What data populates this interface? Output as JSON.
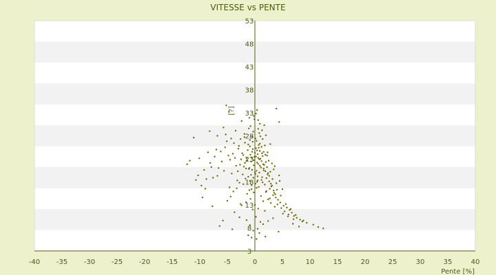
{
  "chart_data": {
    "type": "scatter",
    "title": "VITESSE vs PENTE",
    "xlabel": "Pente [%]",
    "ylabel": "[?]",
    "xlim": [
      -40,
      40
    ],
    "ylim": [
      3,
      53
    ],
    "x_ticks": [
      "-40",
      "-35",
      "-30",
      "-25",
      "-20",
      "-15",
      "-10",
      "-5",
      "0",
      "5",
      "10",
      "15",
      "20",
      "25",
      "30",
      "35",
      "40"
    ],
    "y_ticks": [
      "53",
      "48",
      "43",
      "38",
      "33",
      "28",
      "23",
      "18",
      "13",
      "8",
      "3"
    ],
    "grid": true,
    "legend": "none",
    "colors": {
      "background": "#eef2cc",
      "plot_band_white": "#ffffff",
      "plot_band_gray": "#f2f2f2",
      "axis": "#5a5a10",
      "marker": "#6b6b00",
      "text": "#4a5a10"
    },
    "series": [
      {
        "points": [
          [
            -0.5,
            24.5
          ],
          [
            0.6,
            23.2
          ],
          [
            1.5,
            21.8
          ],
          [
            -1.2,
            26.1
          ],
          [
            0.1,
            27.4
          ],
          [
            2.3,
            19.6
          ],
          [
            -2.1,
            23.8
          ],
          [
            0.8,
            22.9
          ],
          [
            1.2,
            18.4
          ],
          [
            -0.9,
            25.7
          ],
          [
            3.1,
            17.2
          ],
          [
            -1.8,
            22.1
          ],
          [
            0.4,
            24.8
          ],
          [
            1.9,
            20.3
          ],
          [
            -0.2,
            21.6
          ],
          [
            2.7,
            16.5
          ],
          [
            -3.0,
            25.2
          ],
          [
            0.9,
            26.3
          ],
          [
            1.4,
            17.9
          ],
          [
            -1.1,
            20.8
          ],
          [
            4.2,
            14.1
          ],
          [
            -2.6,
            27.3
          ],
          [
            0.2,
            23.5
          ],
          [
            2.1,
            18.8
          ],
          [
            -0.7,
            22.4
          ],
          [
            3.5,
            15.6
          ],
          [
            -4.0,
            24.1
          ],
          [
            1.1,
            21.1
          ],
          [
            0.5,
            19.2
          ],
          [
            -1.5,
            23.1
          ],
          [
            5.2,
            12.8
          ],
          [
            -3.4,
            21.5
          ],
          [
            0.7,
            25.4
          ],
          [
            2.9,
            17.6
          ],
          [
            -0.3,
            18.9
          ],
          [
            4.6,
            13.5
          ],
          [
            -5.1,
            26.8
          ],
          [
            1.6,
            20.9
          ],
          [
            0.3,
            16.7
          ],
          [
            -2.2,
            19.6
          ],
          [
            6.3,
            11.9
          ],
          [
            -4.5,
            22.8
          ],
          [
            1.0,
            27.9
          ],
          [
            3.3,
            15.1
          ],
          [
            -0.6,
            17.3
          ],
          [
            5.8,
            12.4
          ],
          [
            -6.2,
            24.6
          ],
          [
            2.0,
            22.3
          ],
          [
            0.0,
            20.1
          ],
          [
            -1.9,
            28.4
          ],
          [
            7.1,
            10.6
          ],
          [
            -5.6,
            20.4
          ],
          [
            1.3,
            24.2
          ],
          [
            3.8,
            14.6
          ],
          [
            -1.0,
            16.2
          ],
          [
            6.7,
            11.3
          ],
          [
            -7.3,
            23.5
          ],
          [
            2.4,
            19.9
          ],
          [
            -0.4,
            26.7
          ],
          [
            -2.8,
            17.8
          ],
          [
            8.2,
            9.8
          ],
          [
            -6.8,
            19.3
          ],
          [
            0.6,
            29.5
          ],
          [
            4.1,
            13.1
          ],
          [
            -1.4,
            15.4
          ],
          [
            7.6,
            10.2
          ],
          [
            -8.1,
            22.1
          ],
          [
            2.6,
            18.1
          ],
          [
            0.8,
            28.6
          ],
          [
            -3.3,
            16.6
          ],
          [
            9.4,
            9.1
          ],
          [
            -7.9,
            21.2
          ],
          [
            1.7,
            30.3
          ],
          [
            4.8,
            12.3
          ],
          [
            -0.8,
            14.3
          ],
          [
            8.8,
            9.6
          ],
          [
            -9.2,
            20.6
          ],
          [
            3.0,
            17.0
          ],
          [
            -0.1,
            31.6
          ],
          [
            -3.9,
            15.9
          ],
          [
            10.6,
            8.7
          ],
          [
            -8.8,
            18.6
          ],
          [
            1.8,
            25.9
          ],
          [
            5.4,
            11.6
          ],
          [
            -1.6,
            13.6
          ],
          [
            11.5,
            8.2
          ],
          [
            -10.3,
            19.4
          ],
          [
            3.4,
            16.1
          ],
          [
            0.2,
            32.8
          ],
          [
            -4.4,
            14.8
          ],
          [
            12.4,
            7.9
          ],
          [
            -9.7,
            17.2
          ],
          [
            2.2,
            23.7
          ],
          [
            6.1,
            10.9
          ],
          [
            -2.4,
            12.9
          ],
          [
            -11.1,
            27.6
          ],
          [
            -12.3,
            21.8
          ],
          [
            3.7,
            15.3
          ],
          [
            0.4,
            33.6
          ],
          [
            -5.0,
            13.9
          ],
          [
            -0.2,
            22.7
          ],
          [
            0.9,
            21.5
          ],
          [
            -0.8,
            23.9
          ],
          [
            1.6,
            20.5
          ],
          [
            -1.3,
            24.9
          ],
          [
            0.1,
            19.7
          ],
          [
            -2.0,
            21.3
          ],
          [
            1.2,
            25.6
          ],
          [
            0.5,
            18.3
          ],
          [
            -0.5,
            20.6
          ],
          [
            2.5,
            22.6
          ],
          [
            -1.7,
            18.7
          ],
          [
            0.3,
            26.9
          ],
          [
            1.8,
            17.4
          ],
          [
            -0.9,
            27.1
          ],
          [
            2.8,
            20.2
          ],
          [
            -2.5,
            22.9
          ],
          [
            0.7,
            16.9
          ],
          [
            -0.4,
            25.1
          ],
          [
            1.4,
            23.6
          ],
          [
            3.2,
            18.6
          ],
          [
            -3.1,
            20.3
          ],
          [
            0.0,
            24.3
          ],
          [
            2.0,
            15.8
          ],
          [
            -1.2,
            19.1
          ],
          [
            3.6,
            21.4
          ],
          [
            -2.9,
            25.8
          ],
          [
            1.1,
            14.9
          ],
          [
            -0.6,
            23.3
          ],
          [
            2.3,
            24.4
          ],
          [
            4.0,
            16.3
          ],
          [
            -3.6,
            23.2
          ],
          [
            0.6,
            21.9
          ],
          [
            2.4,
            14.2
          ],
          [
            -1.8,
            26.5
          ],
          [
            4.4,
            19.4
          ],
          [
            -4.2,
            19.8
          ],
          [
            1.5,
            13.8
          ],
          [
            0.9,
            24.7
          ],
          [
            -0.3,
            28.9
          ],
          [
            -1.0,
            21.0
          ],
          [
            0.4,
            22.2
          ],
          [
            1.0,
            23.0
          ],
          [
            -0.7,
            19.5
          ],
          [
            0.2,
            25.3
          ],
          [
            1.7,
            21.7
          ],
          [
            -1.4,
            22.6
          ],
          [
            0.8,
            20.0
          ],
          [
            -0.1,
            23.4
          ],
          [
            0.5,
            24.0
          ],
          [
            -2.3,
            24.2
          ],
          [
            1.3,
            19.0
          ],
          [
            -0.5,
            27.8
          ],
          [
            2.2,
            21.2
          ],
          [
            -1.6,
            20.9
          ],
          [
            0.1,
            17.6
          ],
          [
            1.9,
            23.9
          ],
          [
            -0.9,
            18.2
          ],
          [
            0.7,
            26.0
          ],
          [
            -2.7,
            21.7
          ],
          [
            3.9,
            17.7
          ],
          [
            -3.8,
            26.4
          ],
          [
            1.2,
            22.5
          ],
          [
            -0.2,
            15.7
          ],
          [
            2.6,
            19.3
          ],
          [
            -1.1,
            29.6
          ],
          [
            0.3,
            20.4
          ],
          [
            4.7,
            15.0
          ],
          [
            -4.8,
            23.7
          ],
          [
            1.6,
            24.5
          ],
          [
            5.6,
            13.2
          ],
          [
            -5.4,
            25.5
          ],
          [
            0.4,
            18.0
          ],
          [
            3.1,
            22.0
          ],
          [
            -2.1,
            17.5
          ],
          [
            0.9,
            30.6
          ],
          [
            -0.6,
            16.4
          ],
          [
            2.9,
            13.4
          ],
          [
            -6.0,
            22.4
          ],
          [
            1.4,
            27.3
          ],
          [
            6.5,
            12.1
          ],
          [
            -6.6,
            21.0
          ],
          [
            2.1,
            16.0
          ],
          [
            -1.9,
            27.7
          ],
          [
            0.6,
            12.2
          ],
          [
            3.4,
            20.7
          ],
          [
            -3.2,
            18.3
          ],
          [
            5.1,
            11.1
          ],
          [
            -7.0,
            25.0
          ],
          [
            0.0,
            13.0
          ],
          [
            7.4,
            10.8
          ],
          [
            -7.6,
            18.9
          ],
          [
            2.7,
            14.4
          ],
          [
            -0.8,
            30.1
          ],
          [
            1.8,
            11.7
          ],
          [
            -4.6,
            16.8
          ],
          [
            4.5,
            18.2
          ],
          [
            6.0,
            10.5
          ],
          [
            -8.5,
            24.4
          ],
          [
            -0.4,
            12.0
          ],
          [
            8.6,
            9.4
          ],
          [
            -9.0,
            16.5
          ],
          [
            3.6,
            12.6
          ],
          [
            -5.3,
            28.3
          ],
          [
            0.2,
            10.4
          ],
          [
            -2.6,
            13.2
          ],
          [
            5.0,
            16.4
          ],
          [
            7.0,
            9.9
          ],
          [
            -10.1,
            23.1
          ],
          [
            1.0,
            9.3
          ],
          [
            -0.9,
            8.6
          ],
          [
            0.5,
            7.8
          ],
          [
            -1.5,
            9.7
          ],
          [
            1.5,
            8.8
          ],
          [
            -2.8,
            10.3
          ],
          [
            2.4,
            9.5
          ],
          [
            -3.7,
            11.4
          ],
          [
            0.8,
            6.9
          ],
          [
            -0.3,
            7.4
          ],
          [
            3.3,
            10.1
          ],
          [
            -5.8,
            9.6
          ],
          [
            -6.4,
            8.4
          ],
          [
            -4.1,
            7.7
          ],
          [
            6.9,
            8.9
          ],
          [
            8.0,
            8.3
          ],
          [
            4.3,
            7.2
          ],
          [
            -1.2,
            6.4
          ],
          [
            1.9,
            6.1
          ],
          [
            -0.6,
            5.9
          ],
          [
            0.3,
            5.6
          ],
          [
            -2.4,
            31.2
          ],
          [
            -1.0,
            31.9
          ],
          [
            0.6,
            31.4
          ],
          [
            -3.5,
            29.1
          ],
          [
            2.0,
            28.1
          ],
          [
            -0.2,
            32.3
          ],
          [
            1.3,
            29.2
          ],
          [
            -4.3,
            27.4
          ],
          [
            2.8,
            26.2
          ],
          [
            -5.7,
            29.8
          ],
          [
            -5.2,
            34.6
          ],
          [
            -4.7,
            33.2
          ],
          [
            3.9,
            33.9
          ],
          [
            4.4,
            31.0
          ],
          [
            -6.8,
            28.0
          ],
          [
            -8.2,
            29.0
          ],
          [
            -11.8,
            22.6
          ],
          [
            -10.7,
            18.4
          ],
          [
            -9.5,
            14.6
          ],
          [
            -7.7,
            12.7
          ]
        ]
      }
    ]
  }
}
